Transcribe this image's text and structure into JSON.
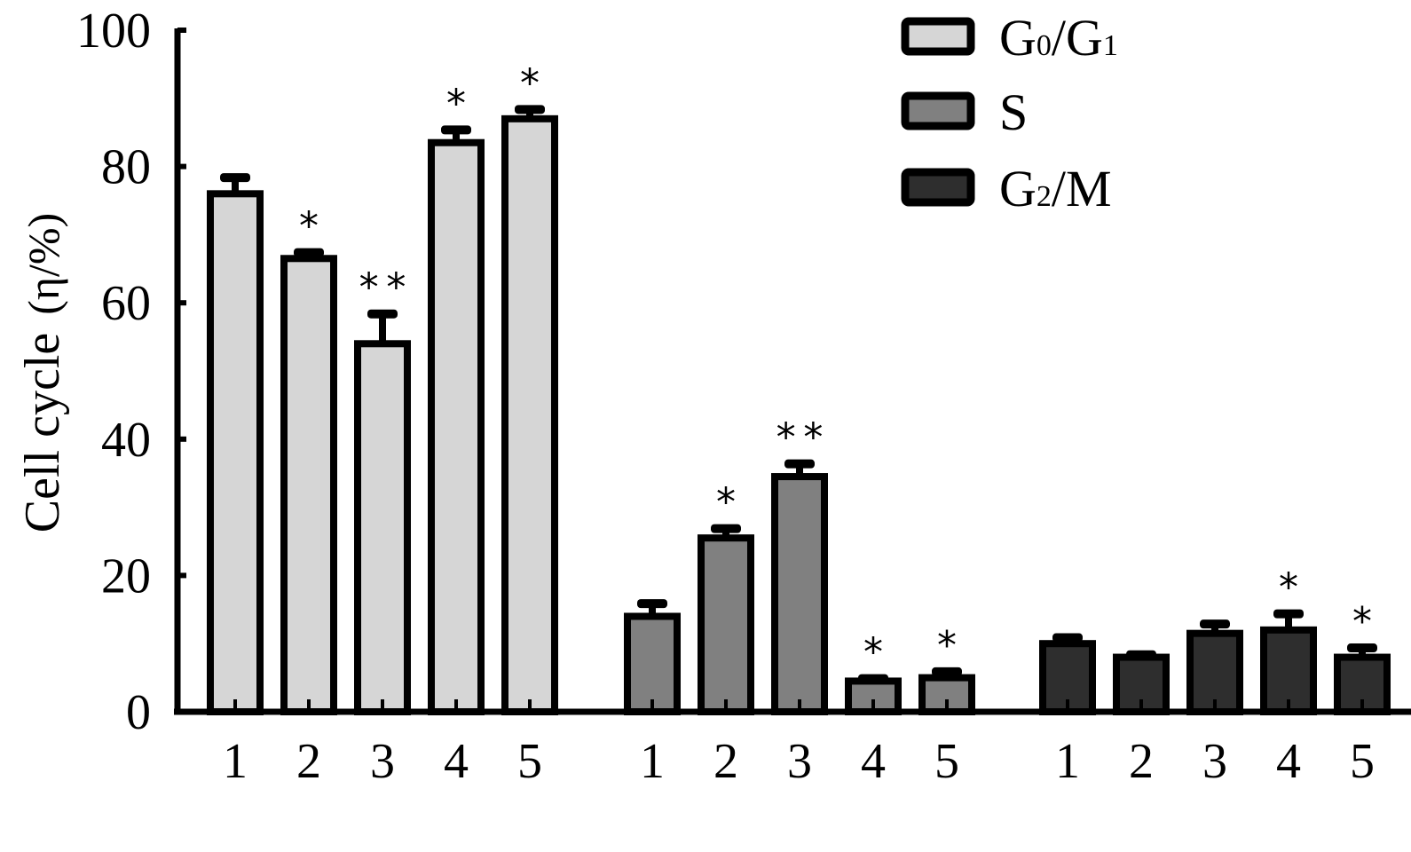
{
  "chart_data": {
    "type": "bar",
    "ylabel": "Cell cycle",
    "ylabel_unit": "(η/%)",
    "ylim": [
      0,
      100
    ],
    "yticks": [
      "0",
      "20",
      "40",
      "60",
      "80",
      "100"
    ],
    "grid": false,
    "legend_position": "top-right",
    "groups": [
      {
        "series": "G0/G1",
        "legend_main": "G",
        "legend_sub1": "0",
        "legend_sep": "/G",
        "legend_sub2": "1",
        "fill": "#d6d6d6",
        "categories": [
          "1",
          "2",
          "3",
          "4",
          "5"
        ],
        "values": [
          76,
          66.5,
          54,
          83.5,
          87
        ],
        "errors": [
          2.5,
          1,
          4.5,
          2,
          1.5
        ],
        "annotations": [
          "",
          "*",
          "**",
          "*",
          "*"
        ]
      },
      {
        "series": "S",
        "legend_main": "S",
        "legend_sub1": "",
        "legend_sep": "",
        "legend_sub2": "",
        "fill": "#808080",
        "categories": [
          "1",
          "2",
          "3",
          "4",
          "5"
        ],
        "values": [
          14,
          25.5,
          34.5,
          4.5,
          5
        ],
        "errors": [
          2,
          1.5,
          2,
          0.5,
          1
        ],
        "annotations": [
          "",
          "*",
          "**",
          "*",
          "*"
        ]
      },
      {
        "series": "G2/M",
        "legend_main": "G",
        "legend_sub1": "2",
        "legend_sep": "/M",
        "legend_sub2": "",
        "fill": "#2e2e2e",
        "categories": [
          "1",
          "2",
          "3",
          "4",
          "5"
        ],
        "values": [
          10,
          8,
          11.5,
          12,
          8
        ],
        "errors": [
          1,
          0.5,
          1.5,
          2.5,
          1.5
        ],
        "annotations": [
          "",
          "",
          "",
          "*",
          "*"
        ]
      }
    ]
  }
}
